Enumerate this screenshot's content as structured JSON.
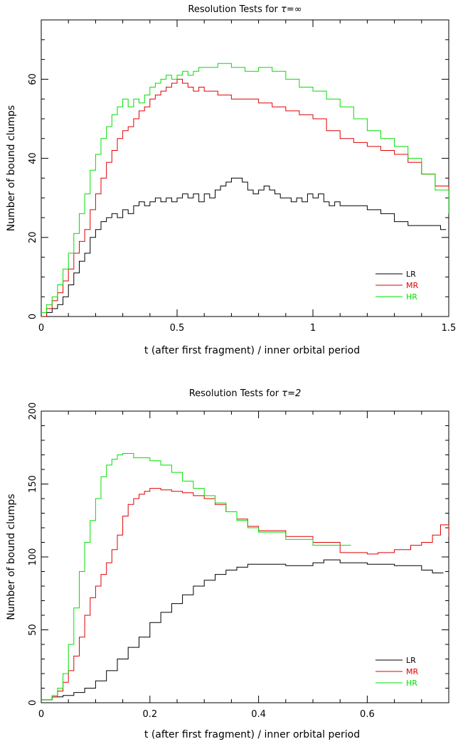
{
  "chart_data": [
    {
      "type": "line",
      "style": "step",
      "title_prefix": "Resolution Tests for ",
      "title_symbol": "τ=∞",
      "xlabel": "t (after first fragment) / inner orbital period",
      "ylabel": "Number of bound clumps",
      "xlim": [
        0,
        1.5
      ],
      "ylim": [
        0,
        75
      ],
      "xticks": [
        0,
        0.5,
        1,
        1.5
      ],
      "xtick_labels": [
        "0",
        "0.5",
        "1",
        "1.5"
      ],
      "yticks": [
        0,
        20,
        40,
        60
      ],
      "ytick_labels": [
        "0",
        "20",
        "40",
        "60"
      ],
      "legend_position": "bottom-right",
      "series": [
        {
          "name": "LR",
          "color": "#000000",
          "x": [
            0,
            0.02,
            0.04,
            0.06,
            0.08,
            0.1,
            0.12,
            0.14,
            0.16,
            0.18,
            0.2,
            0.22,
            0.24,
            0.26,
            0.28,
            0.3,
            0.32,
            0.34,
            0.36,
            0.38,
            0.4,
            0.42,
            0.44,
            0.46,
            0.48,
            0.5,
            0.52,
            0.54,
            0.56,
            0.58,
            0.6,
            0.62,
            0.64,
            0.66,
            0.68,
            0.7,
            0.72,
            0.74,
            0.76,
            0.78,
            0.8,
            0.82,
            0.84,
            0.86,
            0.88,
            0.9,
            0.92,
            0.94,
            0.96,
            0.98,
            1.0,
            1.02,
            1.04,
            1.06,
            1.08,
            1.1,
            1.15,
            1.2,
            1.25,
            1.3,
            1.35,
            1.4,
            1.45,
            1.47
          ],
          "y": [
            0,
            1,
            2,
            3,
            5,
            8,
            11,
            14,
            16,
            20,
            22,
            24,
            25,
            26,
            25,
            27,
            26,
            28,
            29,
            28,
            29,
            30,
            29,
            30,
            29,
            30,
            31,
            30,
            31,
            29,
            31,
            30,
            32,
            33,
            34,
            35,
            35,
            34,
            32,
            31,
            32,
            33,
            32,
            31,
            30,
            30,
            29,
            30,
            29,
            31,
            30,
            31,
            29,
            28,
            29,
            28,
            28,
            27,
            26,
            24,
            23,
            23,
            23,
            22
          ]
        },
        {
          "name": "MR",
          "color": "#e00000",
          "x": [
            0,
            0.02,
            0.04,
            0.06,
            0.08,
            0.1,
            0.12,
            0.14,
            0.16,
            0.18,
            0.2,
            0.22,
            0.24,
            0.26,
            0.28,
            0.3,
            0.32,
            0.34,
            0.36,
            0.38,
            0.4,
            0.42,
            0.44,
            0.46,
            0.48,
            0.5,
            0.52,
            0.54,
            0.56,
            0.58,
            0.6,
            0.65,
            0.7,
            0.75,
            0.8,
            0.85,
            0.9,
            0.95,
            1.0,
            1.05,
            1.1,
            1.15,
            1.2,
            1.25,
            1.3,
            1.35,
            1.4,
            1.45,
            1.5
          ],
          "y": [
            0,
            2,
            4,
            6,
            9,
            12,
            16,
            19,
            22,
            27,
            31,
            35,
            39,
            42,
            45,
            47,
            48,
            50,
            52,
            53,
            55,
            56,
            57,
            58,
            59,
            60,
            59,
            58,
            57,
            58,
            57,
            56,
            55,
            55,
            54,
            53,
            52,
            51,
            50,
            47,
            45,
            44,
            43,
            42,
            41,
            39,
            36,
            33,
            30
          ]
        },
        {
          "name": "HR",
          "color": "#00e000",
          "x": [
            0,
            0.02,
            0.04,
            0.06,
            0.08,
            0.1,
            0.12,
            0.14,
            0.16,
            0.18,
            0.2,
            0.22,
            0.24,
            0.26,
            0.28,
            0.3,
            0.32,
            0.34,
            0.36,
            0.38,
            0.4,
            0.42,
            0.44,
            0.46,
            0.48,
            0.5,
            0.52,
            0.54,
            0.56,
            0.58,
            0.6,
            0.65,
            0.7,
            0.75,
            0.8,
            0.85,
            0.9,
            0.95,
            1.0,
            1.05,
            1.1,
            1.15,
            1.2,
            1.25,
            1.3,
            1.35,
            1.4,
            1.45,
            1.5
          ],
          "y": [
            1,
            3,
            5,
            8,
            12,
            16,
            21,
            26,
            31,
            37,
            41,
            45,
            48,
            51,
            53,
            55,
            53,
            55,
            54,
            56,
            58,
            59,
            60,
            61,
            60,
            61,
            62,
            61,
            62,
            63,
            63,
            64,
            63,
            62,
            63,
            62,
            60,
            58,
            57,
            55,
            53,
            50,
            47,
            45,
            43,
            40,
            36,
            32,
            26
          ]
        }
      ]
    },
    {
      "type": "line",
      "style": "step",
      "title_prefix": "Resolution Tests for ",
      "title_symbol": "τ=2",
      "xlabel": "t (after first fragment) / inner orbital period",
      "ylabel": "Number of bound clumps",
      "xlim": [
        0,
        0.75
      ],
      "ylim": [
        0,
        200
      ],
      "xticks": [
        0,
        0.2,
        0.4,
        0.6
      ],
      "xtick_labels": [
        "0",
        "0.2",
        "0.4",
        "0.6"
      ],
      "yticks": [
        0,
        50,
        100,
        150,
        200
      ],
      "ytick_labels": [
        "0",
        "50",
        "100",
        "150",
        "200"
      ],
      "legend_position": "bottom-right",
      "series": [
        {
          "name": "LR",
          "color": "#000000",
          "x": [
            0,
            0.02,
            0.04,
            0.06,
            0.08,
            0.1,
            0.12,
            0.14,
            0.16,
            0.18,
            0.2,
            0.22,
            0.24,
            0.26,
            0.28,
            0.3,
            0.32,
            0.34,
            0.36,
            0.38,
            0.4,
            0.45,
            0.5,
            0.52,
            0.55,
            0.6,
            0.65,
            0.7,
            0.72
          ],
          "y": [
            2,
            4,
            5,
            7,
            10,
            15,
            22,
            30,
            38,
            45,
            55,
            62,
            68,
            74,
            80,
            84,
            88,
            91,
            93,
            95,
            95,
            94,
            96,
            98,
            96,
            95,
            94,
            91,
            89
          ]
        },
        {
          "name": "MR",
          "color": "#e00000",
          "x": [
            0,
            0.02,
            0.03,
            0.04,
            0.05,
            0.06,
            0.07,
            0.08,
            0.09,
            0.1,
            0.11,
            0.12,
            0.13,
            0.14,
            0.15,
            0.16,
            0.17,
            0.18,
            0.19,
            0.2,
            0.22,
            0.24,
            0.26,
            0.28,
            0.3,
            0.32,
            0.34,
            0.36,
            0.38,
            0.4,
            0.45,
            0.5,
            0.55,
            0.6,
            0.62,
            0.65,
            0.68,
            0.7,
            0.72,
            0.735,
            0.75
          ],
          "y": [
            2,
            4,
            8,
            14,
            22,
            32,
            45,
            60,
            72,
            80,
            88,
            96,
            105,
            115,
            128,
            136,
            140,
            143,
            145,
            147,
            146,
            145,
            144,
            142,
            140,
            136,
            131,
            126,
            121,
            118,
            114,
            110,
            103,
            102,
            103,
            105,
            108,
            110,
            115,
            122,
            114
          ]
        },
        {
          "name": "HR",
          "color": "#00e000",
          "x": [
            0,
            0.02,
            0.03,
            0.04,
            0.05,
            0.06,
            0.07,
            0.08,
            0.09,
            0.1,
            0.11,
            0.12,
            0.13,
            0.14,
            0.15,
            0.17,
            0.2,
            0.22,
            0.24,
            0.26,
            0.28,
            0.3,
            0.32,
            0.34,
            0.36,
            0.38,
            0.4,
            0.45,
            0.5,
            0.55
          ],
          "y": [
            2,
            5,
            10,
            20,
            40,
            65,
            90,
            110,
            125,
            140,
            155,
            163,
            167,
            170,
            171,
            168,
            166,
            163,
            158,
            152,
            147,
            142,
            137,
            131,
            125,
            120,
            117,
            112,
            108,
            108
          ]
        }
      ]
    }
  ]
}
